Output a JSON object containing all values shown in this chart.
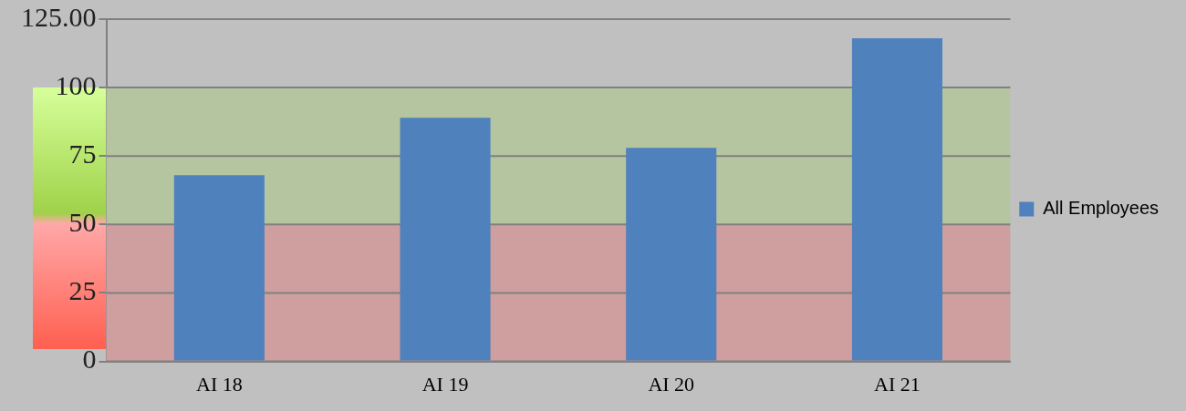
{
  "chart_data": {
    "type": "bar",
    "categories": [
      "AI 18",
      "AI 19",
      "AI 20",
      "AI 21"
    ],
    "series": [
      {
        "name": "All Employees",
        "color": "#4f81bd",
        "values": [
          68,
          89,
          78,
          118
        ]
      }
    ],
    "ylim": [
      0,
      125
    ],
    "yticks": [
      0,
      25,
      50,
      75,
      100,
      {
        "value": 125,
        "label": "125.00"
      }
    ],
    "bands": [
      {
        "axis": "y",
        "from": 0,
        "to": 50,
        "color": "#cf9e9e"
      },
      {
        "axis": "y",
        "from": 50,
        "to": 100,
        "color": "#b5c5a0"
      }
    ],
    "grid": "y",
    "legend": "right"
  }
}
